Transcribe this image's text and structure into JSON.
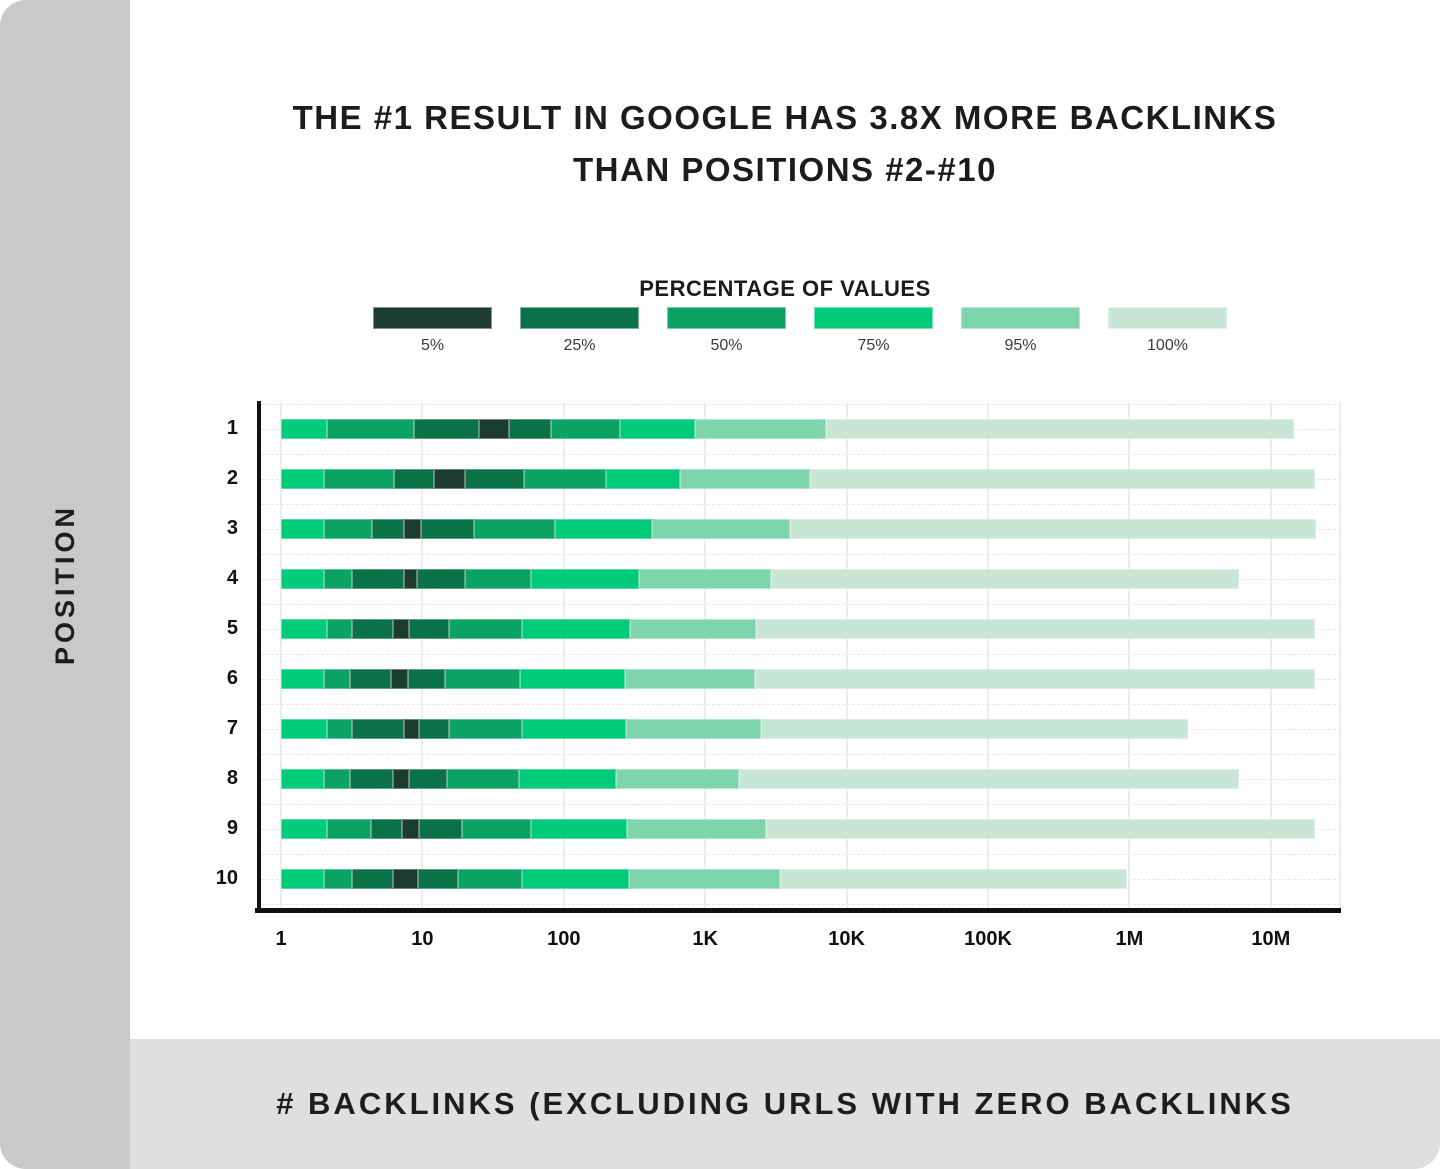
{
  "title": {
    "line1": "THE #1 RESULT IN GOOGLE HAS 3.8X MORE BACKLINKS",
    "line2": "THAN POSITIONS #2-#10"
  },
  "legend": {
    "title": "PERCENTAGE OF VALUES",
    "items": [
      {
        "label": "5%",
        "color": "#1b3c2e"
      },
      {
        "label": "25%",
        "color": "#0b7148"
      },
      {
        "label": "50%",
        "color": "#0ca263"
      },
      {
        "label": "75%",
        "color": "#00cb78"
      },
      {
        "label": "95%",
        "color": "#7fd5ab"
      },
      {
        "label": "100%",
        "color": "#c8e6d6"
      }
    ]
  },
  "y_axis": {
    "title": "POSITION",
    "tick_labels": [
      "1",
      "2",
      "3",
      "4",
      "5",
      "6",
      "7",
      "8",
      "9",
      "10"
    ]
  },
  "x_axis": {
    "title": "# BACKLINKS (EXCLUDING URLS WITH ZERO BACKLINKS"
  },
  "colors": {
    "side_strip": "#c9c9c9",
    "bottom_strip": "#dfdfdf",
    "axis": "#111111",
    "text": "#1c1c1c"
  },
  "chart_data": {
    "type": "bar",
    "subtype": "horizontal-percentile-distribution",
    "x_scale": "log10",
    "x_range": [
      1,
      31000000
    ],
    "grid": true,
    "legend_position": "top",
    "x_ticks": [
      {
        "value": 1,
        "label": "1"
      },
      {
        "value": 10,
        "label": "10"
      },
      {
        "value": 100,
        "label": "100"
      },
      {
        "value": 1000,
        "label": "1K"
      },
      {
        "value": 10000,
        "label": "10K"
      },
      {
        "value": 100000,
        "label": "100K"
      },
      {
        "value": 1000000,
        "label": "1M"
      },
      {
        "value": 10000000,
        "label": "10M"
      }
    ],
    "categories": [
      "1",
      "2",
      "3",
      "4",
      "5",
      "6",
      "7",
      "8",
      "9",
      "10"
    ],
    "percentile_colors": {
      "5%": "#1b3c2e",
      "25%": "#0b7148",
      "50%": "#0ca263",
      "75%": "#00cb78",
      "95%": "#7fd5ab",
      "100%": "#c8e6d6"
    },
    "segment_color_order": [
      "75%",
      "50%",
      "25%",
      "5%",
      "25%",
      "50%",
      "75%",
      "95%",
      "100%"
    ],
    "series": [
      {
        "position": "1",
        "boundaries": [
          1,
          2.1,
          8.7,
          25,
          41,
          81,
          250,
          850,
          7200,
          14500000
        ]
      },
      {
        "position": "2",
        "boundaries": [
          1,
          2.0,
          6.3,
          12,
          20,
          52,
          200,
          660,
          5500,
          20500000
        ]
      },
      {
        "position": "3",
        "boundaries": [
          1,
          2.0,
          4.4,
          7.4,
          9.8,
          23,
          87,
          420,
          4000,
          21000000
        ]
      },
      {
        "position": "4",
        "boundaries": [
          1,
          2.0,
          3.2,
          7.4,
          9.1,
          20,
          59,
          340,
          2900,
          6000000
        ]
      },
      {
        "position": "5",
        "boundaries": [
          1,
          2.1,
          3.2,
          6.2,
          8.1,
          15.5,
          51,
          295,
          2300,
          20500000
        ]
      },
      {
        "position": "6",
        "boundaries": [
          1,
          2.0,
          3.1,
          6.0,
          7.9,
          14.5,
          49,
          270,
          2240,
          20500000
        ]
      },
      {
        "position": "7",
        "boundaries": [
          1,
          2.1,
          3.2,
          7.4,
          9.5,
          15.5,
          51,
          275,
          2500,
          2600000
        ]
      },
      {
        "position": "8",
        "boundaries": [
          1,
          2.0,
          3.1,
          6.2,
          8.1,
          15,
          48,
          234,
          1740,
          6000000
        ]
      },
      {
        "position": "9",
        "boundaries": [
          1,
          2.1,
          4.3,
          7.2,
          9.5,
          19,
          59,
          282,
          2700,
          20500000
        ]
      },
      {
        "position": "10",
        "boundaries": [
          1,
          2.0,
          3.2,
          6.2,
          9.3,
          18,
          51,
          290,
          3400,
          960000
        ]
      }
    ]
  }
}
